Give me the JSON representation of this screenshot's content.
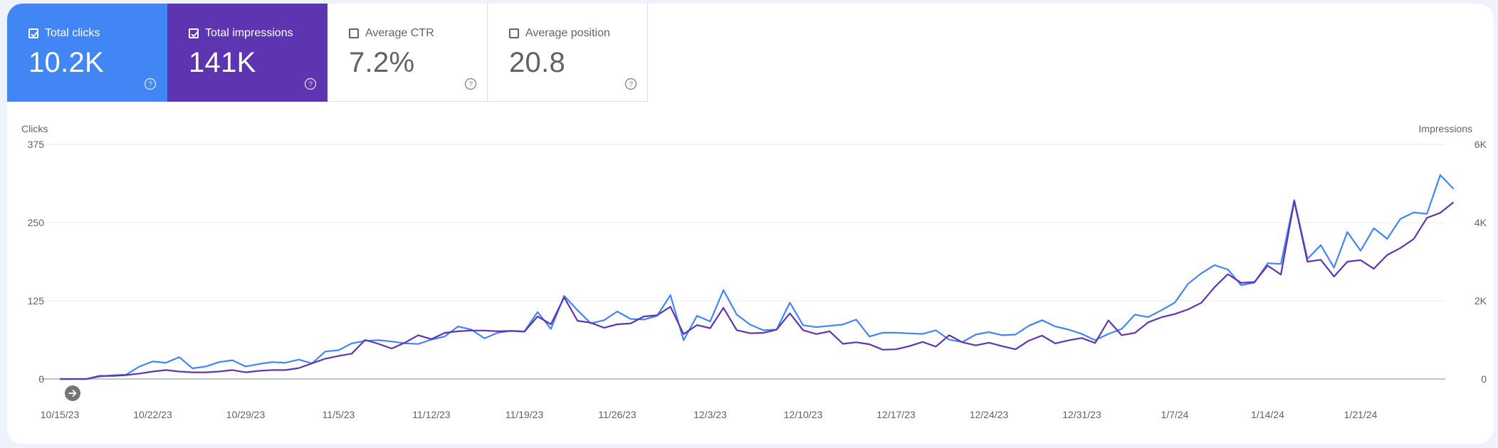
{
  "metrics": [
    {
      "label": "Total clicks",
      "value": "10.2K",
      "checked": true
    },
    {
      "label": "Total impressions",
      "value": "141K",
      "checked": true
    },
    {
      "label": "Average CTR",
      "value": "7.2%",
      "checked": false
    },
    {
      "label": "Average position",
      "value": "20.8",
      "checked": false
    }
  ],
  "colors": {
    "clicks": "#4285f4",
    "impressions": "#5e35b1",
    "grid": "#e8eaed",
    "axis": "#9aa0a6"
  },
  "annotation_icon": "arrow-right-icon",
  "help_icon": "help-circle-icon",
  "chart_data": {
    "type": "line",
    "xlabel": "",
    "left_axis": {
      "title": "Clicks",
      "ticks": [
        "375",
        "250",
        "125",
        "0"
      ],
      "range": [
        0,
        375
      ]
    },
    "right_axis": {
      "title": "Impressions",
      "ticks": [
        "6K",
        "4K",
        "2K",
        "0"
      ],
      "range": [
        0,
        6000
      ]
    },
    "x_tick_labels": [
      "10/15/23",
      "10/22/23",
      "10/29/23",
      "11/5/23",
      "11/12/23",
      "11/19/23",
      "11/26/23",
      "12/3/23",
      "12/10/23",
      "12/17/23",
      "12/24/23",
      "12/31/23",
      "1/7/24",
      "1/14/24",
      "1/21/24"
    ],
    "x_start_date": "10/15/23",
    "grid": true,
    "series": [
      {
        "name": "Clicks",
        "axis": "left",
        "values": [
          0,
          0,
          0,
          4,
          6,
          7,
          20,
          28,
          26,
          35,
          17,
          20,
          27,
          30,
          20,
          24,
          27,
          26,
          31,
          25,
          44,
          46,
          57,
          61,
          62,
          60,
          57,
          56,
          63,
          68,
          84,
          79,
          65,
          74,
          77,
          76,
          107,
          80,
          133,
          110,
          89,
          94,
          108,
          96,
          95,
          101,
          134,
          62,
          101,
          92,
          142,
          103,
          87,
          78,
          79,
          122,
          86,
          83,
          85,
          87,
          95,
          68,
          74,
          74,
          73,
          72,
          78,
          63,
          59,
          71,
          75,
          70,
          71,
          85,
          94,
          84,
          79,
          72,
          62,
          72,
          80,
          103,
          99,
          110,
          122,
          152,
          169,
          182,
          175,
          150,
          154,
          185,
          184,
          286,
          192,
          214,
          178,
          235,
          205,
          241,
          224,
          256,
          266,
          264,
          326,
          304
        ]
      },
      {
        "name": "Impressions",
        "axis": "right",
        "values": [
          0,
          0,
          0,
          80,
          80,
          100,
          140,
          190,
          230,
          190,
          170,
          170,
          190,
          230,
          170,
          210,
          230,
          230,
          280,
          400,
          520,
          590,
          650,
          1000,
          900,
          780,
          930,
          1120,
          1020,
          1180,
          1220,
          1240,
          1240,
          1220,
          1230,
          1210,
          1600,
          1400,
          2090,
          1490,
          1440,
          1310,
          1400,
          1420,
          1600,
          1630,
          1850,
          1150,
          1380,
          1300,
          1820,
          1250,
          1170,
          1180,
          1260,
          1680,
          1250,
          1150,
          1220,
          900,
          940,
          890,
          750,
          760,
          840,
          950,
          830,
          1120,
          940,
          860,
          930,
          840,
          760,
          980,
          1110,
          910,
          990,
          1050,
          920,
          1500,
          1120,
          1180,
          1450,
          1580,
          1660,
          1780,
          1950,
          2350,
          2680,
          2460,
          2480,
          2900,
          2670,
          4550,
          3000,
          3050,
          2620,
          3000,
          3040,
          2820,
          3170,
          3350,
          3580,
          4120,
          4250,
          4520
        ]
      }
    ]
  }
}
